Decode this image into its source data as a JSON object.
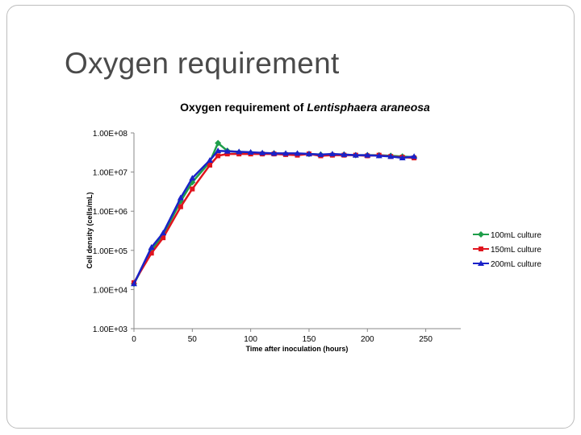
{
  "slide": {
    "title": "Oxygen requirement"
  },
  "chart_data": {
    "type": "line",
    "title_prefix": "Oxygen requirement of ",
    "title_species": "Lentisphaera araneosa",
    "xlabel": "Time after inoculation (hours)",
    "ylabel": "Cell density (cells/mL)",
    "x_scale": "linear",
    "y_scale": "log",
    "xlim": [
      0,
      280
    ],
    "ylim": [
      1000,
      100000000
    ],
    "x_ticks": [
      "0",
      "50",
      "100",
      "150",
      "200",
      "250"
    ],
    "y_ticks": [
      "1.00E+03",
      "1.00E+04",
      "1.00E+05",
      "1.00E+06",
      "1.00E+07",
      "1.00E+08"
    ],
    "grid": false,
    "legend_position": "right",
    "series": [
      {
        "name": "100mL culture",
        "color": "#1e9e4a",
        "marker": "diamond",
        "x": [
          0,
          15,
          25,
          40,
          50,
          65,
          72,
          80,
          90,
          100,
          110,
          120,
          130,
          140,
          150,
          160,
          170,
          180,
          190,
          200,
          210,
          220,
          230,
          240
        ],
        "y": [
          14000,
          100000,
          250000,
          1800000,
          5500000,
          18000000,
          55000000,
          35000000,
          32000000,
          31000000,
          30000000,
          30000000,
          29000000,
          29000000,
          29000000,
          28000000,
          28000000,
          28000000,
          27000000,
          27000000,
          27000000,
          26000000,
          25000000,
          24000000
        ]
      },
      {
        "name": "150mL culture",
        "color": "#e0141e",
        "marker": "square",
        "x": [
          0,
          15,
          25,
          40,
          50,
          65,
          72,
          80,
          90,
          100,
          110,
          120,
          130,
          140,
          150,
          160,
          170,
          180,
          190,
          200,
          210,
          220,
          230,
          240
        ],
        "y": [
          15000,
          85000,
          210000,
          1300000,
          3700000,
          15000000,
          26000000,
          29000000,
          29000000,
          29000000,
          29000000,
          29000000,
          28000000,
          27000000,
          29000000,
          26000000,
          27000000,
          27000000,
          27000000,
          26000000,
          27000000,
          25000000,
          24000000,
          23000000
        ]
      },
      {
        "name": "200mL culture",
        "color": "#1a22c8",
        "marker": "triangle",
        "x": [
          0,
          15,
          25,
          40,
          50,
          65,
          72,
          80,
          90,
          100,
          110,
          120,
          130,
          140,
          150,
          160,
          170,
          180,
          190,
          200,
          210,
          220,
          230,
          240
        ],
        "y": [
          14000,
          120000,
          280000,
          2200000,
          7000000,
          20000000,
          35000000,
          34000000,
          33000000,
          32000000,
          31000000,
          30000000,
          30000000,
          30000000,
          29000000,
          28000000,
          29000000,
          28000000,
          27000000,
          27000000,
          26000000,
          25000000,
          23000000,
          25000000
        ]
      }
    ]
  }
}
